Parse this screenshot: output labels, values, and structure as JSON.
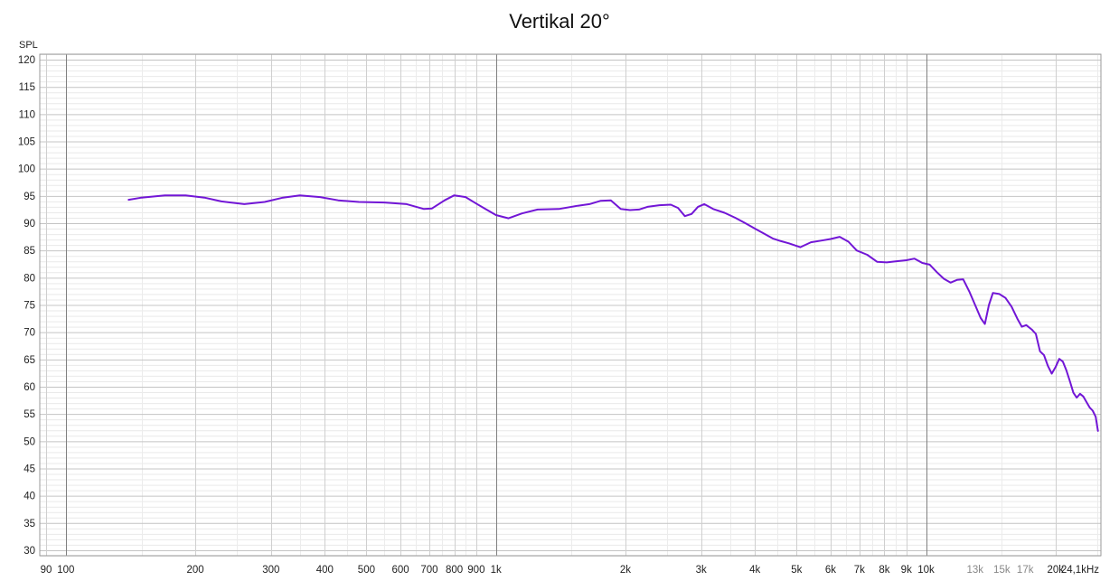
{
  "chart_data": {
    "type": "line",
    "title": "Vertikal 20°",
    "ylabel": "SPL",
    "xlabel": "",
    "x_scale": "log",
    "xlim": [
      87,
      25500
    ],
    "ylim": [
      29,
      121
    ],
    "grid": true,
    "y_ticks": [
      30,
      35,
      40,
      45,
      50,
      55,
      60,
      65,
      70,
      75,
      80,
      85,
      90,
      95,
      100,
      105,
      110,
      115,
      120
    ],
    "x_ticks": [
      {
        "value": 90,
        "label": "90",
        "muted": false
      },
      {
        "value": 100,
        "label": "100",
        "muted": false
      },
      {
        "value": 200,
        "label": "200",
        "muted": false
      },
      {
        "value": 300,
        "label": "300",
        "muted": false
      },
      {
        "value": 400,
        "label": "400",
        "muted": false
      },
      {
        "value": 500,
        "label": "500",
        "muted": false
      },
      {
        "value": 600,
        "label": "600",
        "muted": false
      },
      {
        "value": 700,
        "label": "700",
        "muted": false
      },
      {
        "value": 800,
        "label": "800",
        "muted": false
      },
      {
        "value": 900,
        "label": "900",
        "muted": false
      },
      {
        "value": 1000,
        "label": "1k",
        "muted": false
      },
      {
        "value": 2000,
        "label": "2k",
        "muted": false
      },
      {
        "value": 3000,
        "label": "3k",
        "muted": false
      },
      {
        "value": 4000,
        "label": "4k",
        "muted": false
      },
      {
        "value": 5000,
        "label": "5k",
        "muted": false
      },
      {
        "value": 6000,
        "label": "6k",
        "muted": false
      },
      {
        "value": 7000,
        "label": "7k",
        "muted": false
      },
      {
        "value": 8000,
        "label": "8k",
        "muted": false
      },
      {
        "value": 9000,
        "label": "9k",
        "muted": false
      },
      {
        "value": 10000,
        "label": "10k",
        "muted": false
      },
      {
        "value": 13000,
        "label": "13k",
        "muted": true
      },
      {
        "value": 15000,
        "label": "15k",
        "muted": true
      },
      {
        "value": 17000,
        "label": "17k",
        "muted": true
      },
      {
        "value": 20000,
        "label": "20k",
        "muted": false
      },
      {
        "value": 24100,
        "label": "24,1kHz",
        "muted": false
      }
    ],
    "series": [
      {
        "color": "#7216d6",
        "points": [
          [
            140,
            94.3
          ],
          [
            150,
            94.7
          ],
          [
            170,
            95.1
          ],
          [
            190,
            95.1
          ],
          [
            210,
            94.7
          ],
          [
            230,
            94.0
          ],
          [
            260,
            93.5
          ],
          [
            290,
            93.9
          ],
          [
            320,
            94.7
          ],
          [
            350,
            95.1
          ],
          [
            390,
            94.8
          ],
          [
            430,
            94.2
          ],
          [
            480,
            93.9
          ],
          [
            550,
            93.8
          ],
          [
            620,
            93.5
          ],
          [
            680,
            92.6
          ],
          [
            710,
            92.7
          ],
          [
            760,
            94.2
          ],
          [
            800,
            95.1
          ],
          [
            850,
            94.8
          ],
          [
            900,
            93.6
          ],
          [
            950,
            92.5
          ],
          [
            1000,
            91.5
          ],
          [
            1070,
            90.9
          ],
          [
            1150,
            91.8
          ],
          [
            1250,
            92.5
          ],
          [
            1400,
            92.6
          ],
          [
            1550,
            93.2
          ],
          [
            1650,
            93.5
          ],
          [
            1750,
            94.1
          ],
          [
            1850,
            94.2
          ],
          [
            1950,
            92.6
          ],
          [
            2050,
            92.4
          ],
          [
            2150,
            92.5
          ],
          [
            2250,
            93.0
          ],
          [
            2400,
            93.3
          ],
          [
            2550,
            93.4
          ],
          [
            2650,
            92.8
          ],
          [
            2750,
            91.3
          ],
          [
            2850,
            91.7
          ],
          [
            2950,
            93.0
          ],
          [
            3050,
            93.5
          ],
          [
            3200,
            92.6
          ],
          [
            3400,
            91.9
          ],
          [
            3600,
            91.0
          ],
          [
            3800,
            90.0
          ],
          [
            4000,
            89.0
          ],
          [
            4200,
            88.1
          ],
          [
            4400,
            87.2
          ],
          [
            4600,
            86.7
          ],
          [
            4800,
            86.3
          ],
          [
            5100,
            85.6
          ],
          [
            5400,
            86.5
          ],
          [
            5700,
            86.8
          ],
          [
            6000,
            87.1
          ],
          [
            6300,
            87.5
          ],
          [
            6600,
            86.6
          ],
          [
            6900,
            85.0
          ],
          [
            7300,
            84.2
          ],
          [
            7700,
            82.9
          ],
          [
            8100,
            82.8
          ],
          [
            8500,
            83.0
          ],
          [
            9000,
            83.2
          ],
          [
            9400,
            83.5
          ],
          [
            9800,
            82.7
          ],
          [
            10200,
            82.4
          ],
          [
            10600,
            81.0
          ],
          [
            11000,
            79.8
          ],
          [
            11400,
            79.1
          ],
          [
            11800,
            79.6
          ],
          [
            12200,
            79.7
          ],
          [
            12600,
            77.5
          ],
          [
            13000,
            75.0
          ],
          [
            13400,
            72.6
          ],
          [
            13700,
            71.5
          ],
          [
            14000,
            75.0
          ],
          [
            14300,
            77.2
          ],
          [
            14800,
            77.0
          ],
          [
            15300,
            76.3
          ],
          [
            15800,
            74.7
          ],
          [
            16300,
            72.5
          ],
          [
            16700,
            71.0
          ],
          [
            17100,
            71.3
          ],
          [
            17600,
            70.5
          ],
          [
            18000,
            69.7
          ],
          [
            18400,
            66.5
          ],
          [
            18800,
            65.8
          ],
          [
            19200,
            63.8
          ],
          [
            19600,
            62.4
          ],
          [
            20000,
            63.6
          ],
          [
            20400,
            65.1
          ],
          [
            20800,
            64.6
          ],
          [
            21200,
            63.0
          ],
          [
            21600,
            61.0
          ],
          [
            22000,
            58.9
          ],
          [
            22400,
            58.0
          ],
          [
            22800,
            58.7
          ],
          [
            23200,
            58.2
          ],
          [
            23600,
            57.2
          ],
          [
            24000,
            56.2
          ],
          [
            24400,
            55.6
          ],
          [
            24800,
            54.5
          ],
          [
            25100,
            51.9
          ]
        ]
      }
    ]
  }
}
